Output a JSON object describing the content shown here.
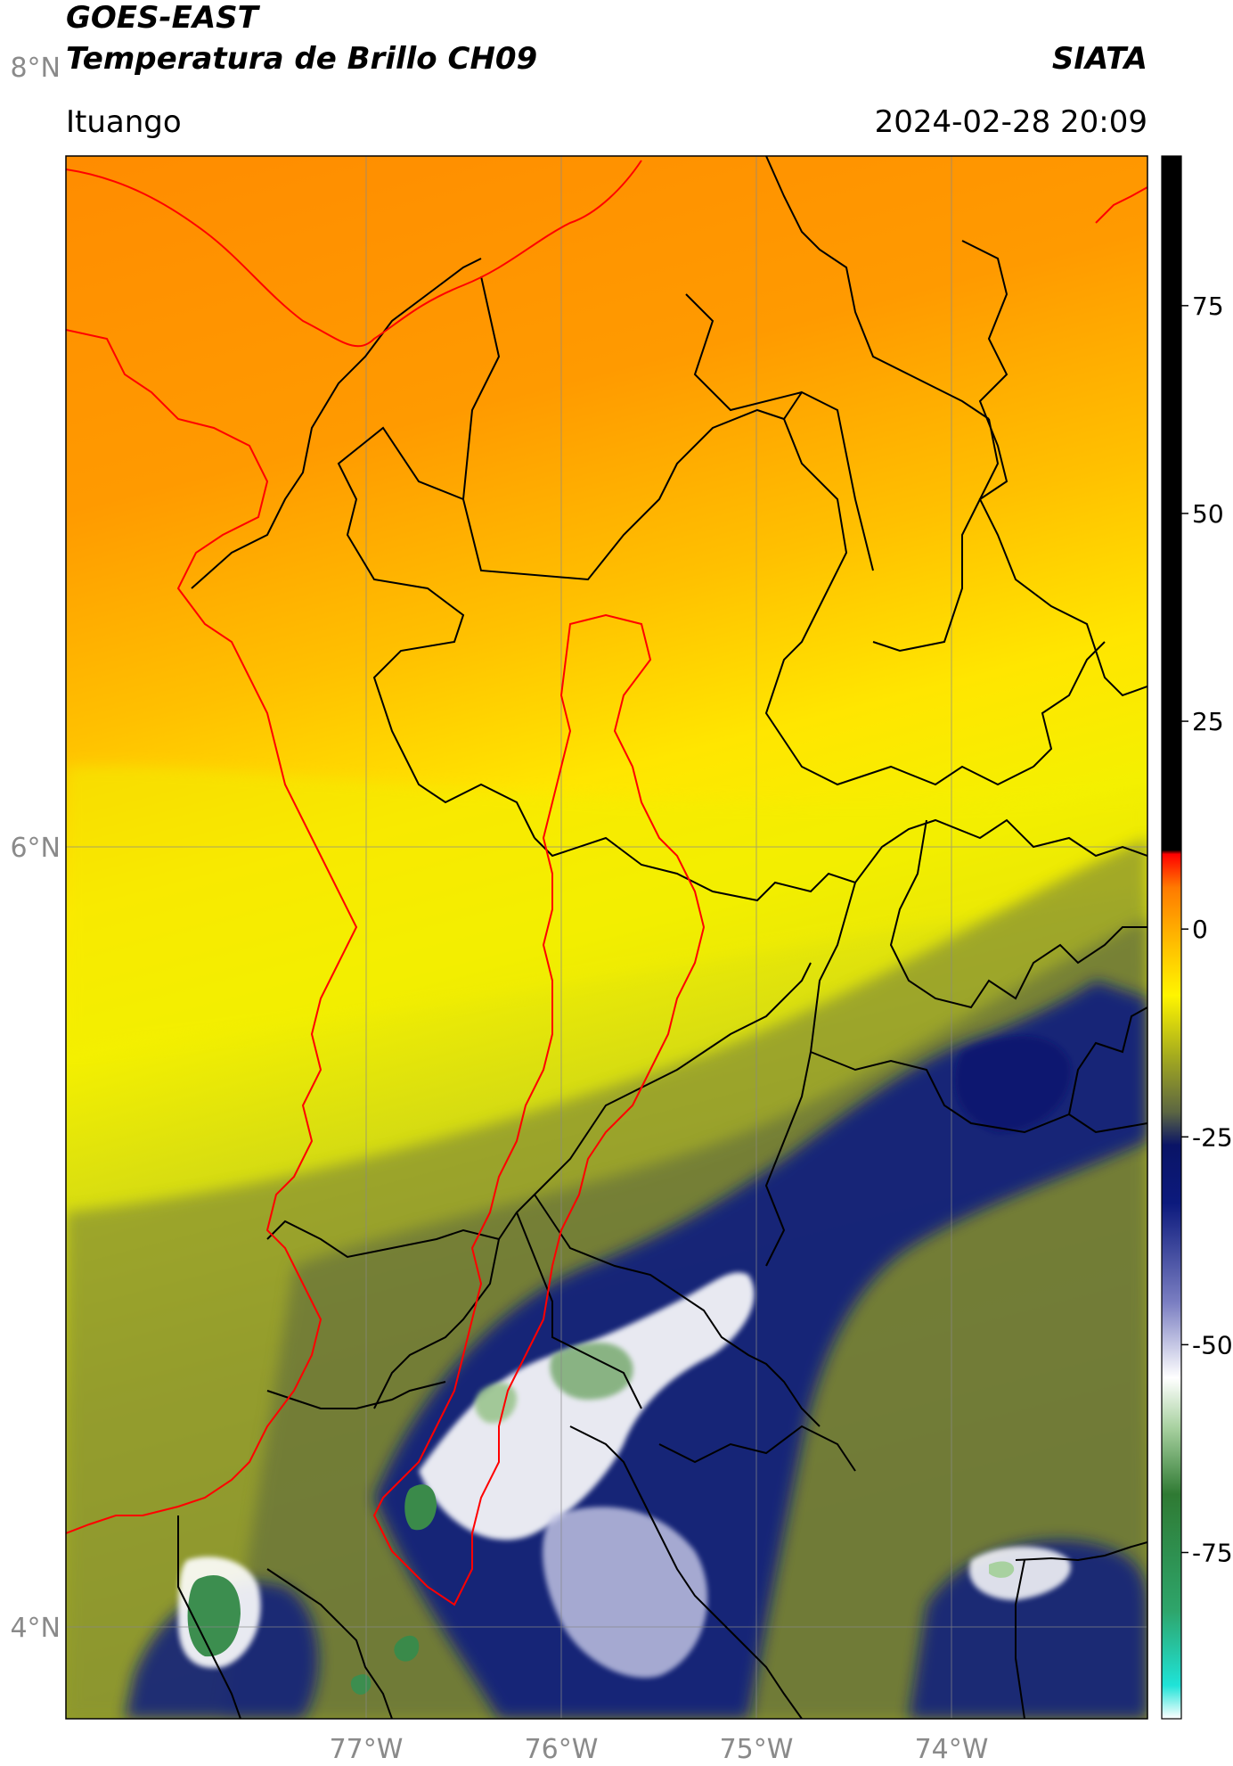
{
  "header": {
    "satellite": "GOES-EAST",
    "product": "Temperatura de Brillo CH09",
    "organization": "SIATA",
    "region": "Ituango",
    "datetime": "2024-02-28 20:09"
  },
  "map": {
    "lat_labels": [
      "8°N",
      "6°N",
      "4°N"
    ],
    "lon_labels": [
      "77°W",
      "76°W",
      "75°W",
      "74°W"
    ],
    "lat_values": [
      8,
      6,
      4
    ],
    "lon_values": [
      -77,
      -76,
      -75,
      -74
    ],
    "colors": {
      "border_lines": "#000000",
      "coast_and_basin_lines": "#ff0000",
      "gridlines": "#888888"
    }
  },
  "colorbar": {
    "tick_labels": [
      "75",
      "50",
      "25",
      "0",
      "-25",
      "-50",
      "-75"
    ],
    "tick_values": [
      75,
      50,
      25,
      0,
      -25,
      -50,
      -75
    ],
    "range": [
      -95,
      93
    ],
    "color_stops": [
      {
        "value": -95,
        "color": "#ffffff"
      },
      {
        "value": -91,
        "color": "#1fe3d8"
      },
      {
        "value": -82,
        "color": "#2ea56b"
      },
      {
        "value": -68,
        "color": "#2f7a33"
      },
      {
        "value": -60,
        "color": "#a8d1a0"
      },
      {
        "value": -54,
        "color": "#ffffff"
      },
      {
        "value": -45,
        "color": "#7b7fc2"
      },
      {
        "value": -33,
        "color": "#0c1a7d"
      },
      {
        "value": -26,
        "color": "#0a1466"
      },
      {
        "value": -22,
        "color": "#5c6642"
      },
      {
        "value": -15,
        "color": "#a8ae1d"
      },
      {
        "value": -8,
        "color": "#fff500"
      },
      {
        "value": -2,
        "color": "#ffc000"
      },
      {
        "value": 5,
        "color": "#ff7a00"
      },
      {
        "value": 9,
        "color": "#ff0000"
      },
      {
        "value": 9.5,
        "color": "#000000"
      },
      {
        "value": 93,
        "color": "#000000"
      }
    ]
  }
}
